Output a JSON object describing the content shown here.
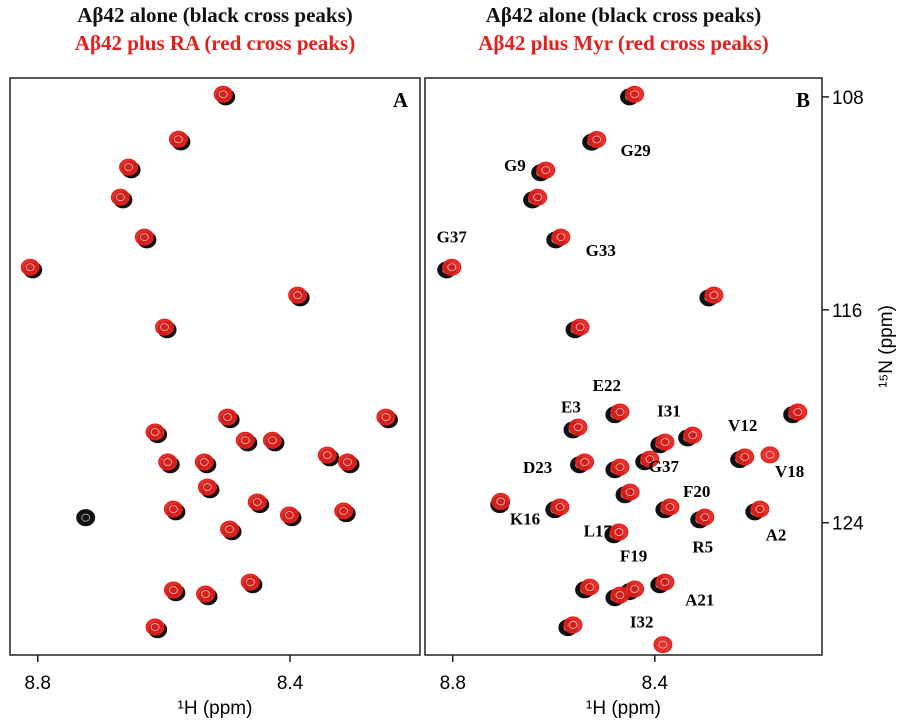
{
  "chart_data": [
    {
      "type": "scatter",
      "panel_label": "A",
      "x_label": "¹H (ppm)",
      "xlim": [
        8.844,
        8.194
      ],
      "ylim": [
        128.97,
        107.29
      ],
      "xticks": [
        8.8,
        8.4
      ],
      "series": [
        {
          "name": "Aβ42 alone (black cross peaks)",
          "color": "#111111",
          "x": [
            8.502,
            8.573,
            8.652,
            8.665,
            8.627,
            8.808,
            8.384,
            8.595,
            8.244,
            8.61,
            8.495,
            8.467,
            8.424,
            8.337,
            8.305,
            8.59,
            8.532,
            8.527,
            8.448,
            8.581,
            8.397,
            8.311,
            8.492,
            8.581,
            8.53,
            8.459,
            8.61,
            8.724
          ],
          "values": [
            108.0,
            109.69,
            110.74,
            111.87,
            113.37,
            114.5,
            115.55,
            116.75,
            120.13,
            120.69,
            120.13,
            121.0,
            121.0,
            121.56,
            121.82,
            121.82,
            121.82,
            122.76,
            123.32,
            123.59,
            123.81,
            123.66,
            124.34,
            126.63,
            126.78,
            126.33,
            128.02,
            123.81
          ]
        },
        {
          "name": "Aβ42 plus RA (red cross peaks)",
          "color": "#e3201b",
          "x": [
            8.506,
            8.577,
            8.656,
            8.669,
            8.631,
            8.812,
            8.388,
            8.599,
            8.248,
            8.614,
            8.499,
            8.471,
            8.428,
            8.341,
            8.309,
            8.594,
            8.536,
            8.531,
            8.452,
            8.585,
            8.401,
            8.315,
            8.496,
            8.585,
            8.534,
            8.463,
            8.614
          ],
          "values": [
            107.9,
            109.59,
            110.64,
            111.77,
            113.27,
            114.4,
            115.45,
            116.65,
            120.03,
            120.59,
            120.03,
            120.9,
            120.9,
            121.46,
            121.72,
            121.72,
            121.72,
            122.66,
            123.22,
            123.49,
            123.71,
            123.56,
            124.24,
            126.53,
            126.68,
            126.23,
            127.92
          ]
        }
      ]
    },
    {
      "type": "scatter",
      "panel_label": "B",
      "x_label": "¹H (ppm)",
      "y_label": "¹⁵N (ppm)",
      "xlim": [
        8.855,
        8.069
      ],
      "ylim": [
        128.97,
        107.29
      ],
      "xticks": [
        8.8,
        8.4
      ],
      "yticks": [
        108,
        116,
        124
      ],
      "series": [
        {
          "name": "Aβ42 alone (black cross peaks)",
          "color": "#111111",
          "x": [
            8.45,
            8.525,
            8.626,
            8.642,
            8.596,
            8.812,
            8.293,
            8.558,
            8.127,
            8.479,
            8.562,
            8.335,
            8.39,
            8.232,
            8.549,
            8.479,
            8.42,
            8.459,
            8.38,
            8.481,
            8.311,
            8.202,
            8.598,
            8.539,
            8.45,
            8.39,
            8.479,
            8.572,
            8.707
          ],
          "values": [
            108.0,
            109.7,
            110.85,
            111.87,
            113.37,
            114.5,
            115.55,
            116.75,
            119.94,
            119.94,
            120.51,
            120.81,
            121.07,
            121.63,
            121.82,
            122.01,
            121.71,
            122.95,
            123.51,
            124.45,
            123.89,
            123.59,
            123.51,
            126.52,
            126.59,
            126.33,
            126.82,
            127.94,
            123.32
          ]
        },
        {
          "name": "Aβ42 plus Myr (red cross peaks)",
          "color": "#e3201b",
          "x": [
            8.44,
            8.515,
            8.616,
            8.632,
            8.586,
            8.802,
            8.283,
            8.548,
            8.117,
            8.469,
            8.552,
            8.325,
            8.38,
            8.222,
            8.539,
            8.469,
            8.41,
            8.449,
            8.37,
            8.471,
            8.301,
            8.192,
            8.588,
            8.529,
            8.44,
            8.38,
            8.469,
            8.562,
            8.172,
            8.384,
            8.705
          ],
          "values": [
            107.9,
            109.6,
            110.75,
            111.77,
            113.27,
            114.4,
            115.45,
            116.65,
            119.84,
            119.84,
            120.41,
            120.71,
            120.97,
            121.53,
            121.72,
            121.91,
            121.61,
            122.85,
            123.41,
            124.35,
            123.79,
            123.49,
            123.41,
            126.42,
            126.49,
            126.23,
            126.72,
            127.84,
            121.45,
            128.58,
            123.2
          ]
        }
      ],
      "annotations": [
        {
          "text": "G29",
          "x": 8.438,
          "y": 110.0
        },
        {
          "text": "G9",
          "x": 8.677,
          "y": 110.55
        },
        {
          "text": "G37",
          "x": 8.802,
          "y": 113.25
        },
        {
          "text": "G33",
          "x": 8.507,
          "y": 113.75
        },
        {
          "text": "E22",
          "x": 8.495,
          "y": 118.82
        },
        {
          "text": "E3",
          "x": 8.566,
          "y": 119.64
        },
        {
          "text": "I31",
          "x": 8.372,
          "y": 119.79
        },
        {
          "text": "V12",
          "x": 8.226,
          "y": 120.32
        },
        {
          "text": "V18",
          "x": 8.133,
          "y": 122.05
        },
        {
          "text": "D23",
          "x": 8.632,
          "y": 121.9
        },
        {
          "text": "G37",
          "x": 8.382,
          "y": 121.86
        },
        {
          "text": "F20",
          "x": 8.317,
          "y": 122.8
        },
        {
          "text": "K16",
          "x": 8.657,
          "y": 123.85
        },
        {
          "text": "L17",
          "x": 8.513,
          "y": 124.3
        },
        {
          "text": "R5",
          "x": 8.305,
          "y": 124.9
        },
        {
          "text": "A2",
          "x": 8.16,
          "y": 124.45
        },
        {
          "text": "F19",
          "x": 8.442,
          "y": 125.24
        },
        {
          "text": "A21",
          "x": 8.311,
          "y": 126.89
        },
        {
          "text": "I32",
          "x": 8.426,
          "y": 127.72
        }
      ]
    }
  ]
}
